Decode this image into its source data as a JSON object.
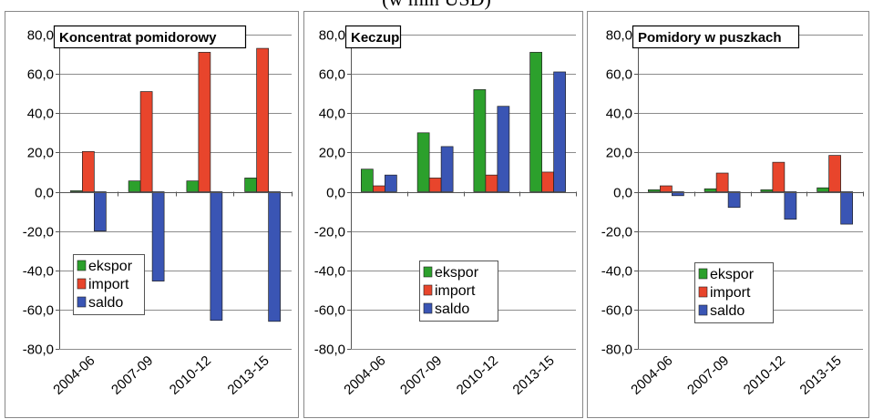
{
  "caption": "(w mln USD)",
  "chart_data": [
    {
      "type": "bar",
      "title": "Koncentrat pomidorowy",
      "categories": [
        "2004-06",
        "2007-09",
        "2010-12",
        "2013-15"
      ],
      "ylim": [
        -80,
        80
      ],
      "yticks": [
        "80,0",
        "60,0",
        "40,0",
        "20,0",
        "0,0",
        "-20,0",
        "-40,0",
        "-60,0",
        "-80,0"
      ],
      "grid": true,
      "legend_position": "bottom-left",
      "series": [
        {
          "name": "ekspor",
          "color": "#2ca02c",
          "values": [
            0.5,
            5.5,
            5.5,
            7.0
          ]
        },
        {
          "name": "import",
          "color": "#e8452c",
          "values": [
            20.5,
            51.0,
            71.0,
            73.0
          ]
        },
        {
          "name": "saldo",
          "color": "#3a55b4",
          "values": [
            -20.0,
            -45.5,
            -65.5,
            -66.0
          ]
        }
      ]
    },
    {
      "type": "bar",
      "title": "Keczup",
      "categories": [
        "2004-06",
        "2007-09",
        "2010-12",
        "2013-15"
      ],
      "ylim": [
        -80,
        80
      ],
      "yticks": [
        "80,0",
        "60,0",
        "40,0",
        "20,0",
        "0,0",
        "-20,0",
        "-40,0",
        "-60,0",
        "-80,0"
      ],
      "grid": true,
      "legend_position": "bottom-center",
      "series": [
        {
          "name": "ekspor",
          "color": "#2ca02c",
          "values": [
            11.5,
            30.0,
            52.0,
            71.0
          ]
        },
        {
          "name": "import",
          "color": "#e8452c",
          "values": [
            3.0,
            7.0,
            8.5,
            10.0
          ]
        },
        {
          "name": "saldo",
          "color": "#3a55b4",
          "values": [
            8.5,
            23.0,
            43.5,
            61.0
          ]
        }
      ]
    },
    {
      "type": "bar",
      "title": "Pomidory w puszkach",
      "categories": [
        "2004-06",
        "2007-09",
        "2010-12",
        "2013-15"
      ],
      "ylim": [
        -80,
        80
      ],
      "yticks": [
        "80,0",
        "60,0",
        "40,0",
        "20,0",
        "0,0",
        "-20,0",
        "-40,0",
        "-60,0",
        "-80,0"
      ],
      "grid": true,
      "legend_position": "bottom-center",
      "series": [
        {
          "name": "ekspor",
          "color": "#2ca02c",
          "values": [
            1.0,
            1.5,
            1.0,
            2.0
          ]
        },
        {
          "name": "import",
          "color": "#e8452c",
          "values": [
            3.0,
            9.5,
            15.0,
            18.5
          ]
        },
        {
          "name": "saldo",
          "color": "#3a55b4",
          "values": [
            -2.0,
            -8.0,
            -14.0,
            -16.5
          ]
        }
      ]
    }
  ]
}
